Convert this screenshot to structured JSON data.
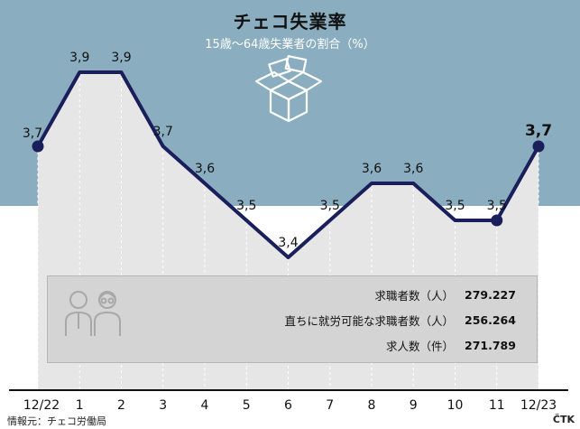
{
  "title": "チェコ失業率",
  "subtitle": "15歳〜64歳失業者の割合（%）",
  "chart_data": {
    "type": "line",
    "categories": [
      "12/22",
      "1",
      "2",
      "3",
      "4",
      "5",
      "6",
      "7",
      "8",
      "9",
      "10",
      "11",
      "12/23"
    ],
    "values": [
      3.7,
      3.9,
      3.9,
      3.7,
      3.6,
      3.5,
      3.4,
      3.5,
      3.6,
      3.6,
      3.5,
      3.5,
      3.7
    ],
    "value_labels": [
      "3,7",
      "3,9",
      "3,9",
      "3,7",
      "3,6",
      "3,5",
      "3,4",
      "3,5",
      "3,6",
      "3,6",
      "3,5",
      "3,5",
      "3,7"
    ],
    "series_color": "#1a1f5c",
    "grid": "vertical dashed",
    "markers": [
      "12/22",
      "11",
      "12/23"
    ]
  },
  "stats": [
    {
      "label": "求職者数（人）",
      "value": "279.227"
    },
    {
      "label": "直ちに就労可能な求職者数（人）",
      "value": "256.264"
    },
    {
      "label": "求人数（件）",
      "value": "271.789"
    }
  ],
  "icons": {
    "box": "open-box-icon",
    "people": "people-icon"
  },
  "colors": {
    "header": "#8aaebf",
    "line": "#1a1f5c",
    "area": "#e6e6e6"
  },
  "source": "情報元：チェコ労働局",
  "agency": "ČTK"
}
